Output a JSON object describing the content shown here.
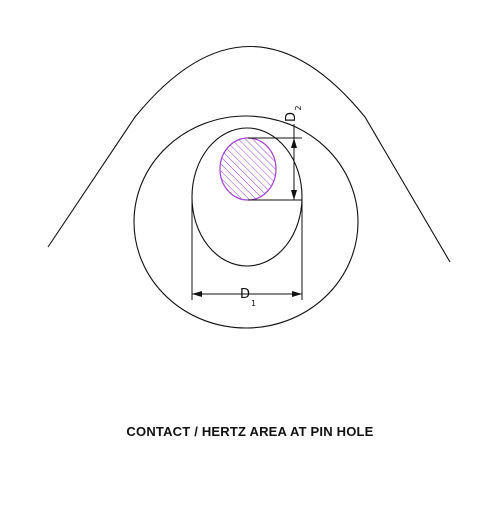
{
  "caption": "CONTACT / HERTZ AREA AT PIN HOLE",
  "dimensions": {
    "d1": {
      "main": "D",
      "sub": "1"
    },
    "d2": {
      "main": "D",
      "sub": "2"
    }
  },
  "colors": {
    "line": "#111111",
    "contact_area": "#a040d0"
  }
}
